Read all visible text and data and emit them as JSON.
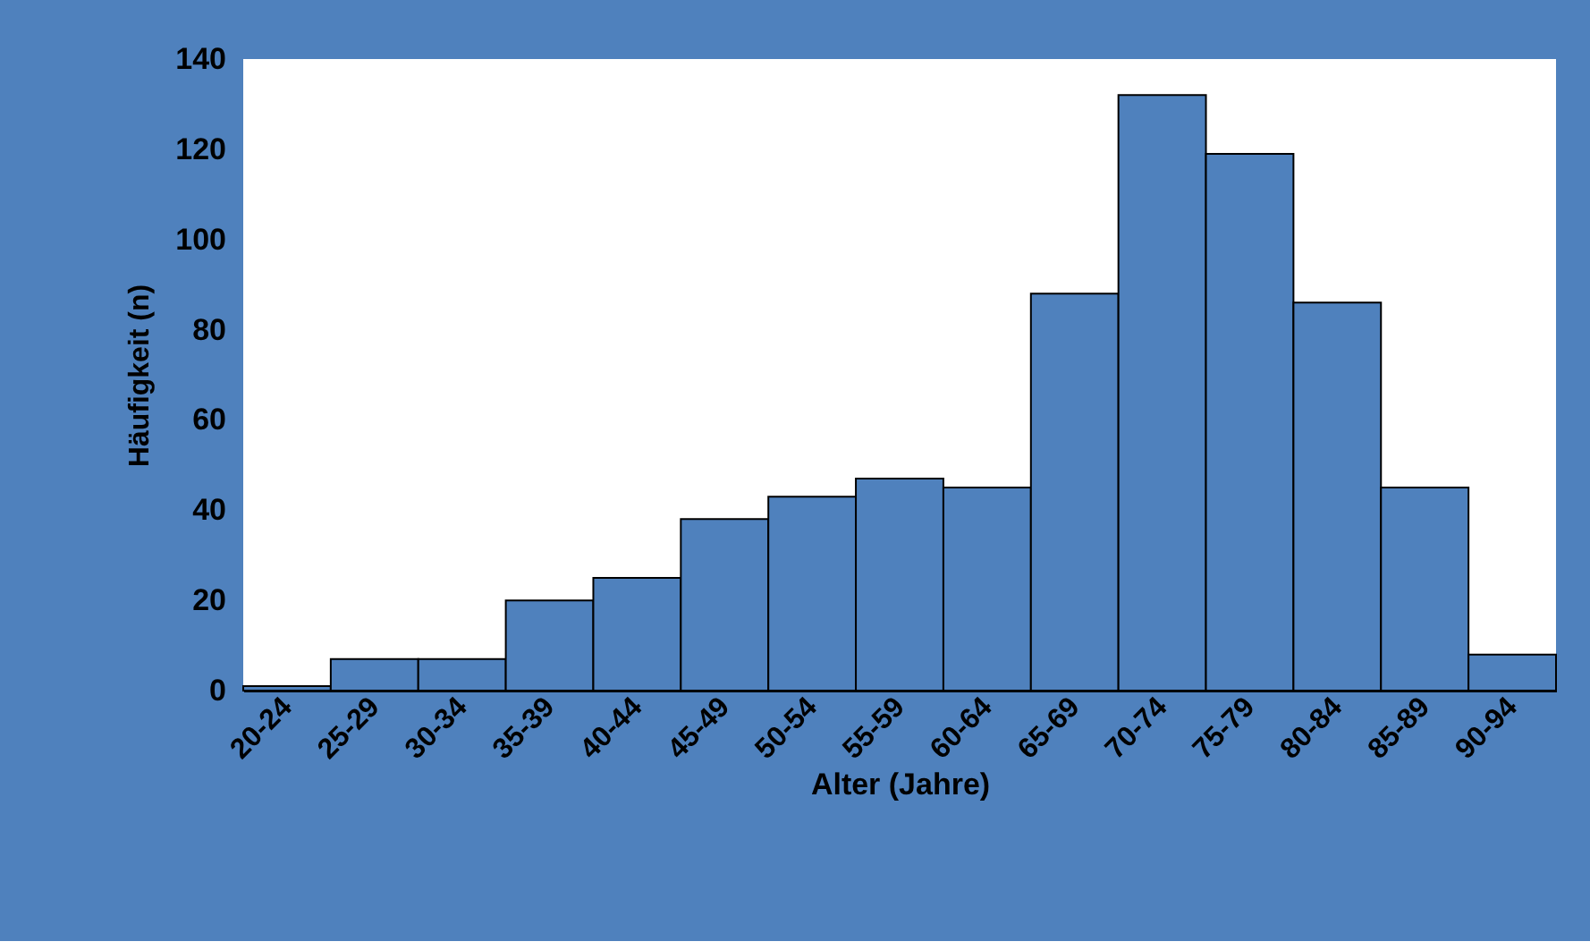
{
  "chart_data": {
    "type": "bar",
    "xlabel": "Alter (Jahre)",
    "ylabel": "Häufigkeit (n)",
    "categories": [
      "20-24",
      "25-29",
      "30-34",
      "35-39",
      "40-44",
      "45-49",
      "50-54",
      "55-59",
      "60-64",
      "65-69",
      "70-74",
      "75-79",
      "80-84",
      "85-89",
      "90-94"
    ],
    "values": [
      1,
      7,
      7,
      20,
      25,
      38,
      43,
      47,
      45,
      88,
      132,
      119,
      86,
      45,
      8
    ],
    "color": "#4f81bd",
    "ylim": [
      0,
      140
    ],
    "yticks": [
      0,
      20,
      40,
      60,
      80,
      100,
      120,
      140
    ],
    "grid": false
  }
}
